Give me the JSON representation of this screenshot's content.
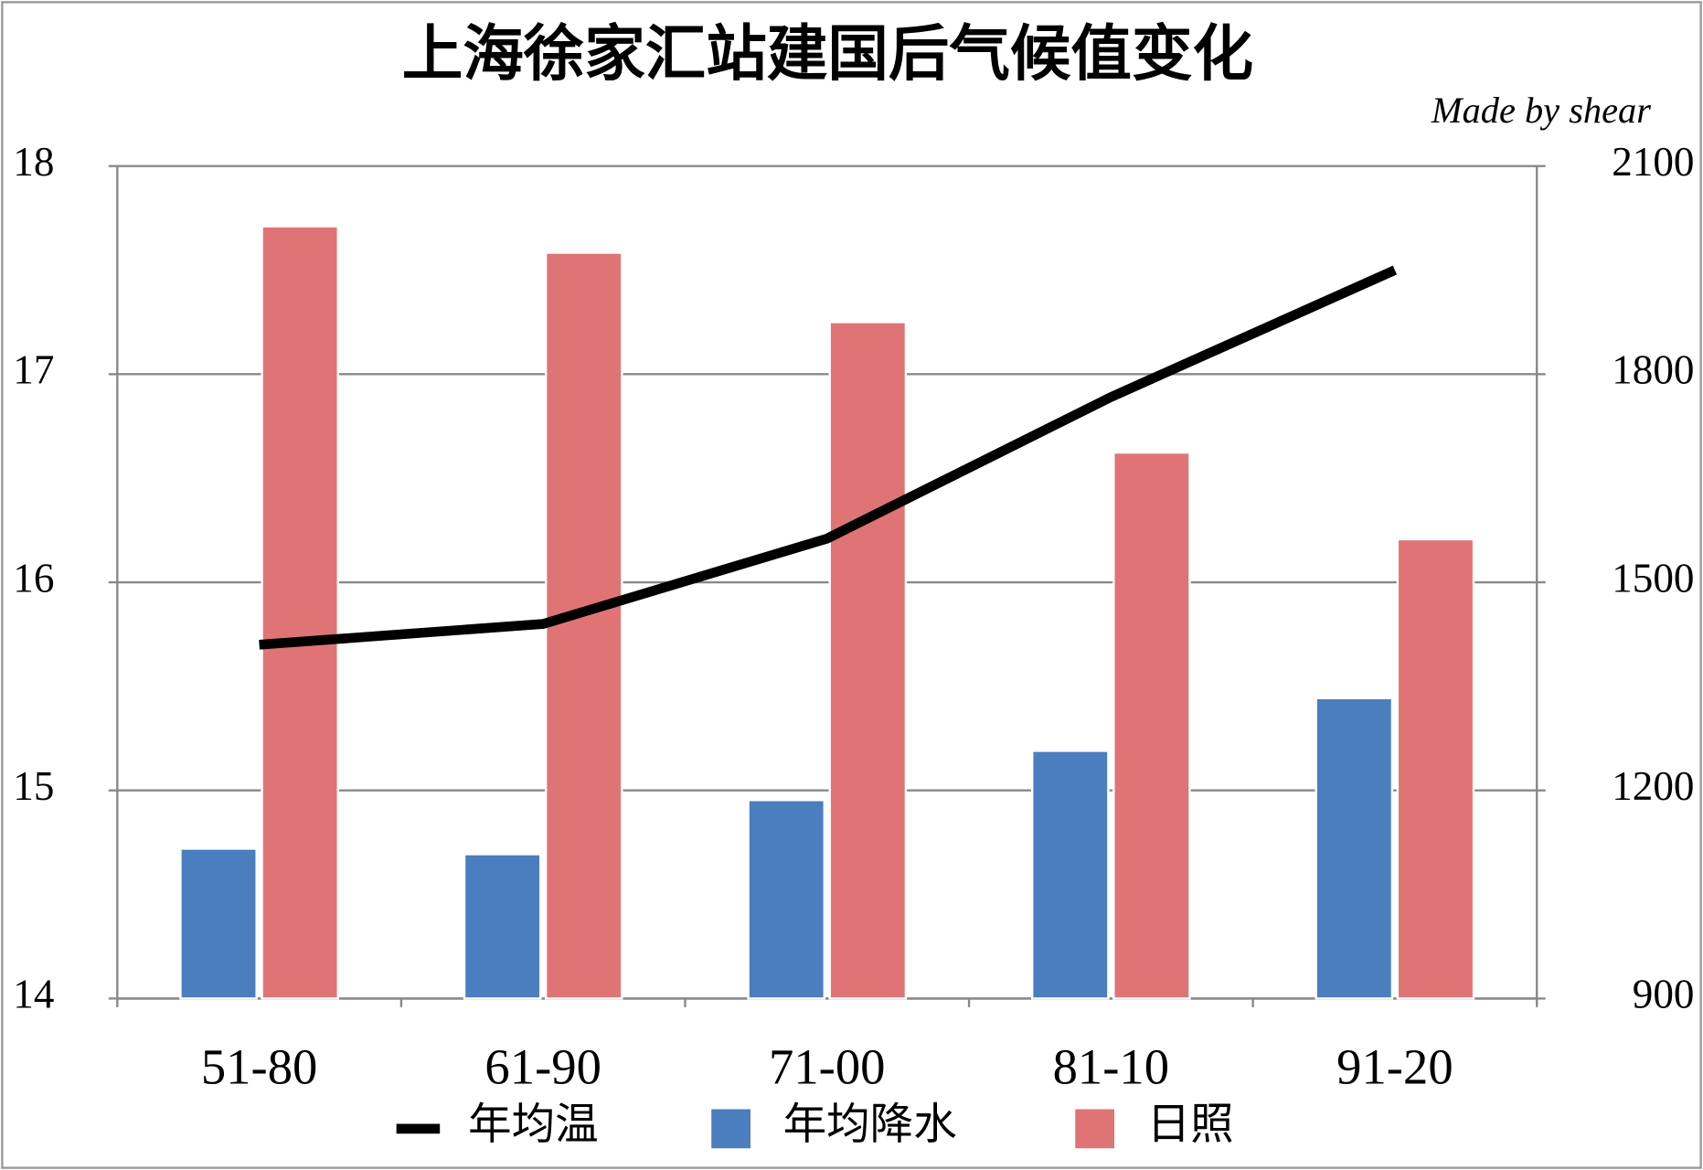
{
  "chart_data": {
    "type": "bar_line",
    "title": "上海徐家汇站建国后气候值变化",
    "annotation": "Made by shear",
    "categories": [
      "51-80",
      "61-90",
      "71-00",
      "81-10",
      "91-20"
    ],
    "series": [
      {
        "name": "年均温",
        "type": "line",
        "color": "#000000",
        "axis": "y",
        "values": [
          15.7,
          15.8,
          16.21,
          16.89,
          17.5
        ]
      },
      {
        "name": "年均降水",
        "type": "bar",
        "color": "#4a7ebf",
        "axis": "y2",
        "values": [
          1116,
          1108,
          1186,
          1257,
          1333
        ]
      },
      {
        "name": "日照",
        "type": "bar",
        "color": "#e07474",
        "axis": "y2",
        "values": [
          2013,
          1975,
          1875,
          1687,
          1562
        ]
      }
    ],
    "ylim": [
      14,
      18
    ],
    "yticks": [
      14,
      15,
      16,
      17,
      18
    ],
    "y2lim": [
      900,
      2100
    ],
    "y2ticks": [
      900,
      1200,
      1500,
      1800,
      2100
    ],
    "grid": true,
    "legend": "bottom"
  }
}
